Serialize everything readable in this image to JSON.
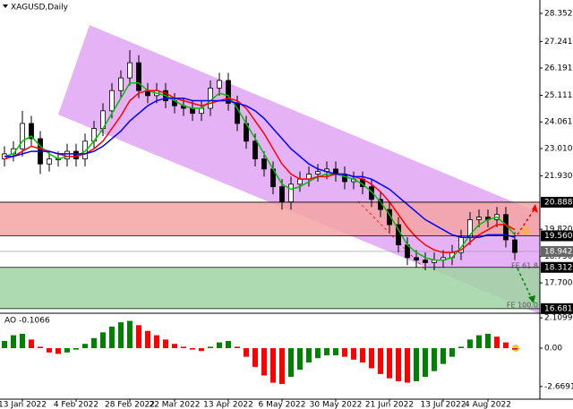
{
  "chart_data": {
    "type": "candlestick",
    "title": "XAGUSD,Daily",
    "categories": [
      null,
      null,
      "13 Jan 2022",
      null,
      null,
      null,
      null,
      null,
      "4 Feb 2022",
      null,
      null,
      null,
      null,
      null,
      "28 Feb 2022",
      null,
      null,
      null,
      null,
      "22 Mar 2022",
      null,
      null,
      null,
      null,
      null,
      "13 Apr 2022",
      null,
      null,
      null,
      null,
      null,
      "6 May 2022",
      null,
      null,
      null,
      null,
      null,
      "30 May 2022",
      null,
      null,
      null,
      null,
      null,
      "21 Jun 2022",
      null,
      null,
      null,
      null,
      null,
      "13 Jul 2022",
      null,
      null,
      null,
      null,
      "4 Aug 2022",
      null,
      null,
      null
    ],
    "open": [
      22.6,
      22.8,
      23.0,
      24.0,
      23.4,
      22.4,
      22.6,
      22.6,
      22.9,
      22.6,
      23.3,
      23.8,
      24.5,
      25.3,
      25.8,
      26.4,
      25.3,
      25.1,
      25.3,
      24.9,
      24.7,
      24.6,
      24.4,
      24.6,
      25.4,
      25.7,
      24.8,
      24.0,
      23.3,
      22.6,
      22.2,
      21.5,
      20.9,
      21.6,
      21.8,
      22.0,
      22.1,
      22.2,
      22.0,
      21.7,
      21.8,
      21.5,
      21.0,
      20.6,
      20.0,
      19.2,
      18.7,
      18.6,
      18.5,
      18.6,
      18.7,
      18.9,
      19.5,
      20.2,
      20.3,
      20.2,
      20.4,
      19.4
    ],
    "high": [
      23.1,
      23.3,
      24.5,
      24.3,
      23.7,
      22.9,
      22.9,
      23.2,
      23.2,
      23.6,
      24.1,
      24.8,
      25.6,
      26.1,
      26.9,
      26.7,
      25.6,
      25.6,
      25.6,
      25.2,
      25.0,
      24.9,
      24.9,
      25.7,
      26.0,
      26.0,
      25.1,
      24.3,
      23.6,
      22.9,
      22.5,
      21.8,
      21.9,
      22.1,
      22.3,
      22.4,
      22.5,
      22.5,
      22.3,
      22.1,
      22.1,
      21.8,
      21.3,
      20.9,
      20.3,
      19.5,
      19.0,
      18.9,
      18.9,
      19.0,
      19.2,
      19.8,
      20.5,
      20.6,
      20.6,
      20.7,
      20.7,
      19.7
    ],
    "low": [
      22.3,
      22.5,
      22.7,
      23.1,
      22.0,
      22.1,
      22.3,
      22.3,
      22.3,
      22.3,
      23.0,
      23.5,
      24.2,
      25.0,
      25.5,
      25.0,
      24.8,
      24.8,
      24.6,
      24.4,
      24.3,
      24.1,
      24.1,
      24.3,
      25.1,
      24.5,
      23.7,
      23.0,
      22.3,
      21.9,
      21.2,
      20.6,
      20.6,
      21.3,
      21.5,
      21.7,
      21.8,
      21.7,
      21.4,
      21.4,
      21.2,
      20.7,
      20.3,
      19.7,
      18.9,
      18.4,
      18.3,
      18.2,
      18.2,
      18.3,
      18.4,
      18.6,
      19.2,
      19.9,
      19.9,
      19.9,
      19.1,
      18.6
    ],
    "close": [
      22.8,
      23.0,
      24.0,
      23.4,
      22.4,
      22.6,
      22.6,
      22.9,
      22.6,
      23.3,
      23.8,
      24.5,
      25.3,
      25.8,
      26.4,
      25.3,
      25.1,
      25.3,
      24.9,
      24.7,
      24.6,
      24.4,
      24.6,
      25.4,
      25.7,
      24.8,
      24.0,
      23.3,
      22.6,
      22.2,
      21.5,
      20.9,
      21.6,
      21.8,
      22.0,
      22.1,
      22.2,
      22.0,
      21.7,
      21.8,
      21.5,
      21.0,
      20.6,
      20.0,
      19.2,
      18.7,
      18.6,
      18.5,
      18.6,
      18.7,
      18.9,
      19.5,
      20.2,
      20.3,
      20.2,
      20.4,
      19.4,
      18.9
    ],
    "candle_colors": {
      "up": "#ffffff",
      "down": "#000000",
      "outline": "#000000"
    },
    "moving_averages": [
      {
        "color": "#00c000",
        "values": [
          22.7,
          22.8,
          23.3,
          23.5,
          23.1,
          22.8,
          22.6,
          22.7,
          22.7,
          22.9,
          23.3,
          23.8,
          24.4,
          25.0,
          25.6,
          25.6,
          25.3,
          25.2,
          25.1,
          24.9,
          24.7,
          24.6,
          24.6,
          24.9,
          25.2,
          25.1,
          24.6,
          24.0,
          23.4,
          22.8,
          22.2,
          21.6,
          21.4,
          21.5,
          21.7,
          21.9,
          22.0,
          22.0,
          21.9,
          21.8,
          21.6,
          21.3,
          20.9,
          20.4,
          19.8,
          19.2,
          18.9,
          18.7,
          18.6,
          18.6,
          18.7,
          19.1,
          19.6,
          20.0,
          20.2,
          20.3,
          20.0,
          19.6
        ]
      },
      {
        "color": "#ff0000",
        "values": [
          22.6,
          22.7,
          22.9,
          23.1,
          23.0,
          22.9,
          22.8,
          22.7,
          22.7,
          22.8,
          23.0,
          23.3,
          23.8,
          24.3,
          24.9,
          25.2,
          25.3,
          25.3,
          25.2,
          25.0,
          24.9,
          24.8,
          24.7,
          24.8,
          24.9,
          25.0,
          24.9,
          24.6,
          24.1,
          23.6,
          23.0,
          22.4,
          22.0,
          21.8,
          21.8,
          21.9,
          21.9,
          22.0,
          22.0,
          21.9,
          21.8,
          21.6,
          21.3,
          20.9,
          20.4,
          19.9,
          19.5,
          19.2,
          19.0,
          18.9,
          18.9,
          19.0,
          19.3,
          19.6,
          19.8,
          20.0,
          20.0,
          19.8
        ]
      },
      {
        "color": "#0000ff",
        "values": [
          22.7,
          22.7,
          22.8,
          22.9,
          22.9,
          22.9,
          22.8,
          22.8,
          22.8,
          22.8,
          22.9,
          23.1,
          23.4,
          23.7,
          24.1,
          24.4,
          24.7,
          24.9,
          25.0,
          25.0,
          25.0,
          24.9,
          24.9,
          24.9,
          24.9,
          24.9,
          24.8,
          24.7,
          24.5,
          24.2,
          23.8,
          23.4,
          23.0,
          22.7,
          22.4,
          22.2,
          22.1,
          22.0,
          22.0,
          21.9,
          21.9,
          21.8,
          21.6,
          21.4,
          21.1,
          20.8,
          20.5,
          20.2,
          20.0,
          19.8,
          19.6,
          19.5,
          19.5,
          19.5,
          19.6,
          19.6,
          19.6,
          19.5
        ]
      }
    ],
    "ylim": [
      16.5,
      28.88
    ],
    "yticks": [
      28.352,
      27.241,
      26.191,
      25.111,
      24.061,
      {
        "value": 23.01,
        "label": "23.010"
      },
      {
        "value": 21.93,
        "label": "21.930"
      },
      {
        "value": 19.82,
        "label": "19.820"
      },
      {
        "value": 18.75,
        "label": "18.750"
      },
      {
        "value": 17.7,
        "label": "17.700"
      }
    ],
    "zones": [
      {
        "from": 20.888,
        "to": {
          "value": 19.56,
          "label": "19.560"
        },
        "color": "#f4a3a3"
      },
      {
        "from": 18.312,
        "to": 16.681,
        "color": "#9fd3a2"
      }
    ],
    "current_price": 18.942,
    "annotations": [
      "FE 61.8",
      "FE 100.0"
    ],
    "indicator": {
      "title": "AO -0.1066",
      "values": [
        0.5,
        0.9,
        1.0,
        0.6,
        0.1,
        -0.3,
        -0.4,
        -0.3,
        -0.1,
        0.3,
        0.7,
        1.1,
        1.5,
        1.8,
        1.9,
        1.6,
        1.2,
        0.9,
        0.6,
        0.3,
        0.1,
        -0.1,
        -0.2,
        0.1,
        0.4,
        0.5,
        0.1,
        -0.6,
        -1.3,
        -1.9,
        -2.4,
        -2.5,
        -2.0,
        -1.5,
        -1.0,
        -0.7,
        -0.5,
        -0.5,
        -0.6,
        -0.8,
        -1.0,
        -1.4,
        -1.8,
        -2.1,
        -2.3,
        -2.4,
        -2.3,
        -2.0,
        -1.6,
        -1.1,
        -0.6,
        0.1,
        0.6,
        0.9,
        1.0,
        0.8,
        0.4,
        -0.1
      ],
      "up_color": "#008000",
      "down_color": "#ff0000",
      "ylim": [
        -3.55,
        2.43
      ],
      "yticks": [
        2.1099,
        {
          "value": 0,
          "label": "0.00"
        },
        -2.6691
      ]
    }
  }
}
